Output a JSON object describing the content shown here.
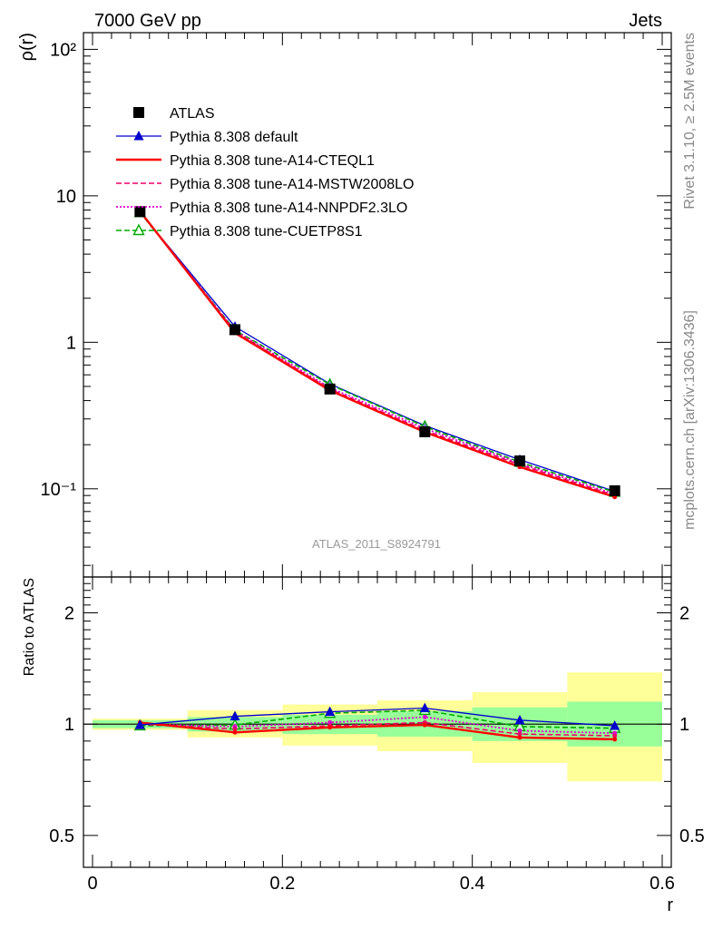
{
  "header": {
    "left": "7000 GeV pp",
    "right": "Jets"
  },
  "side_labels": {
    "rivet": "Rivet 3.1.10, ≥ 2.5M events",
    "mcplots": "mcplots.cern.ch [arXiv:1306.3436]"
  },
  "watermark": "ATLAS_2011_S8924791",
  "chart_data": [
    {
      "type": "line",
      "panel": "main",
      "ylabel": "ρ(r)",
      "xlabel": "",
      "yscale": "log",
      "xlim": [
        -0.02,
        0.6
      ],
      "ylim": [
        0.025,
        130
      ],
      "y_tick_labels": [
        "10⁻¹",
        "1",
        "10",
        "10²"
      ],
      "x": [
        0.05,
        0.15,
        0.25,
        0.35,
        0.45,
        0.55
      ],
      "legend_position": "top-left",
      "series": [
        {
          "name": "ATLAS",
          "values": [
            7.8,
            1.22,
            0.48,
            0.245,
            0.155,
            0.097
          ],
          "color": "#000000",
          "marker": "square",
          "style": "points"
        },
        {
          "name": "Pythia 8.308 default",
          "values": [
            7.75,
            1.28,
            0.52,
            0.27,
            0.158,
            0.096
          ],
          "color": "#0000cc",
          "marker": "triangle",
          "style": "solid"
        },
        {
          "name": "Pythia 8.308 tune-A14-CTEQL1",
          "values": [
            7.85,
            1.16,
            0.47,
            0.244,
            0.141,
            0.088
          ],
          "color": "#ff0000",
          "marker": "dot",
          "style": "solid-thick"
        },
        {
          "name": "Pythia 8.308 tune-A14-MSTW2008LO",
          "values": [
            7.8,
            1.18,
            0.48,
            0.25,
            0.146,
            0.09
          ],
          "color": "#e8006a",
          "marker": "dot",
          "style": "dashed"
        },
        {
          "name": "Pythia 8.308 tune-A14-NNPDF2.3LO",
          "values": [
            7.8,
            1.2,
            0.49,
            0.258,
            0.149,
            0.092
          ],
          "color": "#dd00cc",
          "marker": "dot",
          "style": "dotted"
        },
        {
          "name": "Pythia 8.308 tune-CUETP8S1",
          "values": [
            7.7,
            1.21,
            0.515,
            0.266,
            0.152,
            0.095
          ],
          "color": "#00aa00",
          "marker": "triangle-open",
          "style": "dashed"
        }
      ]
    },
    {
      "type": "line",
      "panel": "ratio",
      "ylabel": "Ratio to ATLAS",
      "xlabel": "r",
      "yscale": "log",
      "xlim": [
        -0.02,
        0.6
      ],
      "ylim": [
        0.41,
        2.5
      ],
      "y_ticks": [
        0.5,
        1,
        2
      ],
      "y_tick_labels": [
        "0.5",
        "1",
        "2"
      ],
      "x_ticks": [
        0,
        0.2,
        0.4,
        0.6
      ],
      "x_tick_labels": [
        "0",
        "0.2",
        "0.4",
        "0.6"
      ],
      "x": [
        0.05,
        0.15,
        0.25,
        0.35,
        0.45,
        0.55
      ],
      "bands": {
        "bins": [
          [
            0.0,
            0.1
          ],
          [
            0.1,
            0.2
          ],
          [
            0.2,
            0.3
          ],
          [
            0.3,
            0.4
          ],
          [
            0.4,
            0.5
          ],
          [
            0.5,
            0.6
          ]
        ],
        "stat_sys_inner": [
          [
            0.975,
            1.025
          ],
          [
            0.955,
            1.045
          ],
          [
            0.94,
            1.06
          ],
          [
            0.925,
            1.085
          ],
          [
            0.9,
            1.11
          ],
          [
            0.87,
            1.15
          ]
        ],
        "total_outer": [
          [
            0.965,
            1.035
          ],
          [
            0.92,
            1.09
          ],
          [
            0.875,
            1.13
          ],
          [
            0.845,
            1.16
          ],
          [
            0.785,
            1.22
          ],
          [
            0.7,
            1.38
          ]
        ],
        "inner_color": "#99ff99",
        "outer_color": "#ffff99"
      },
      "series": [
        {
          "name": "Pythia 8.308 default",
          "values": [
            0.995,
            1.05,
            1.08,
            1.105,
            1.025,
            0.99
          ]
        },
        {
          "name": "Pythia 8.308 tune-A14-CTEQL1",
          "values": [
            1.01,
            0.95,
            0.98,
            0.995,
            0.92,
            0.91
          ]
        },
        {
          "name": "Pythia 8.308 tune-A14-MSTW2008LO",
          "values": [
            1.0,
            0.97,
            0.99,
            1.01,
            0.94,
            0.93
          ]
        },
        {
          "name": "Pythia 8.308 tune-A14-NNPDF2.3LO",
          "values": [
            1.0,
            0.985,
            1.01,
            1.045,
            0.96,
            0.945
          ]
        },
        {
          "name": "Pythia 8.308 tune-CUETP8S1",
          "values": [
            0.99,
            0.995,
            1.07,
            1.09,
            0.985,
            0.975
          ]
        }
      ]
    }
  ]
}
